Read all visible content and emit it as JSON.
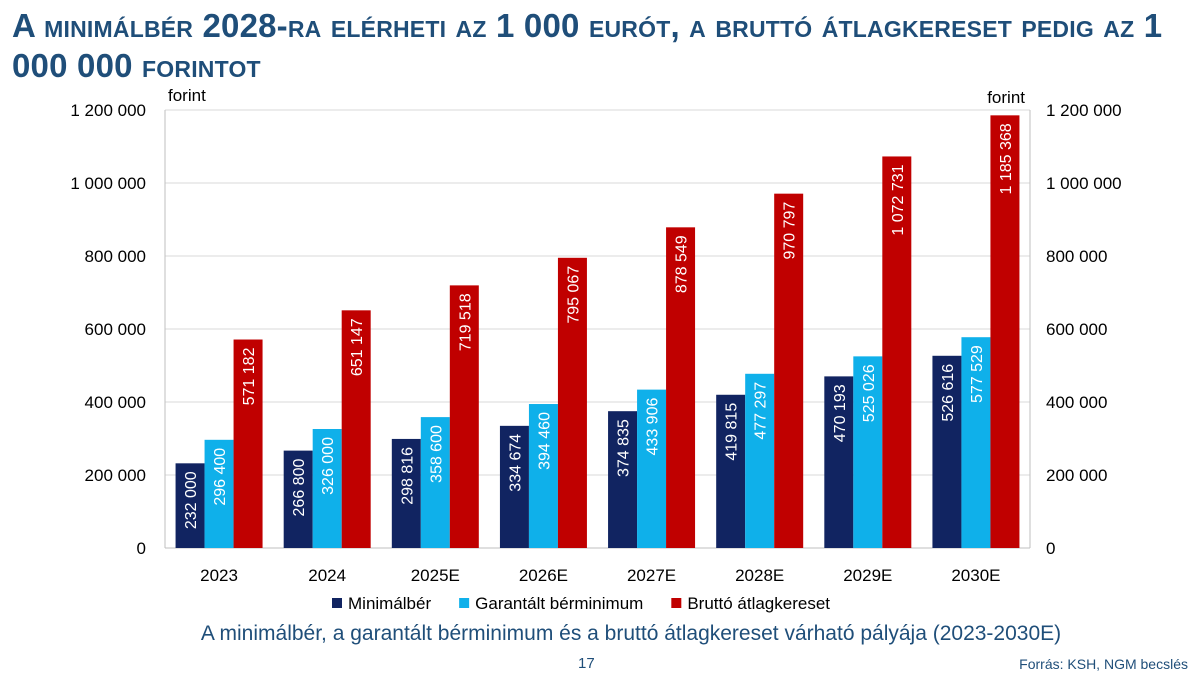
{
  "title": "A minimálbér 2028-ra elérheti az 1 000 eurót, a bruttó átlagkereset pedig az 1 000 000 forintot",
  "caption": "A minimálbér, a garantált bérminimum és a bruttó átlagkereset várható pályája (2023-2030E)",
  "page_number": "17",
  "source": "Forrás: KSH, NGM becslés",
  "chart_data": {
    "type": "bar",
    "categories": [
      "2023",
      "2024",
      "2025E",
      "2026E",
      "2027E",
      "2028E",
      "2029E",
      "2030E"
    ],
    "series": [
      {
        "name": "Minimálbér",
        "color": "#112461",
        "values": [
          232000,
          266800,
          298816,
          334674,
          374835,
          419815,
          470193,
          526616
        ],
        "labels": [
          "232 000",
          "266 800",
          "298 816",
          "334 674",
          "374 835",
          "419 815",
          "470 193",
          "526 616"
        ]
      },
      {
        "name": "Garantált bérminimum",
        "color": "#0fb0ea",
        "values": [
          296400,
          326000,
          358600,
          394460,
          433906,
          477297,
          525026,
          577529
        ],
        "labels": [
          "296 400",
          "326 000",
          "358 600",
          "394 460",
          "433 906",
          "477 297",
          "525 026",
          "577 529"
        ]
      },
      {
        "name": "Bruttó átlagkereset",
        "color": "#c00000",
        "values": [
          571182,
          651147,
          719518,
          795067,
          878549,
          970797,
          1072731,
          1185368
        ],
        "labels": [
          "571 182",
          "651 147",
          "719 518",
          "795 067",
          "878 549",
          "970 797",
          "1 072 731",
          "1 185 368"
        ]
      }
    ],
    "yticks": [
      0,
      200000,
      400000,
      600000,
      800000,
      1000000,
      1200000
    ],
    "ytick_labels": [
      "0",
      "200 000",
      "400 000",
      "600 000",
      "800 000",
      "1 000 000",
      "1 200 000"
    ],
    "ylim": [
      0,
      1200000
    ],
    "ylabel_left": "forint",
    "ylabel_right": "forint",
    "grid": true,
    "legend_position": "bottom"
  }
}
